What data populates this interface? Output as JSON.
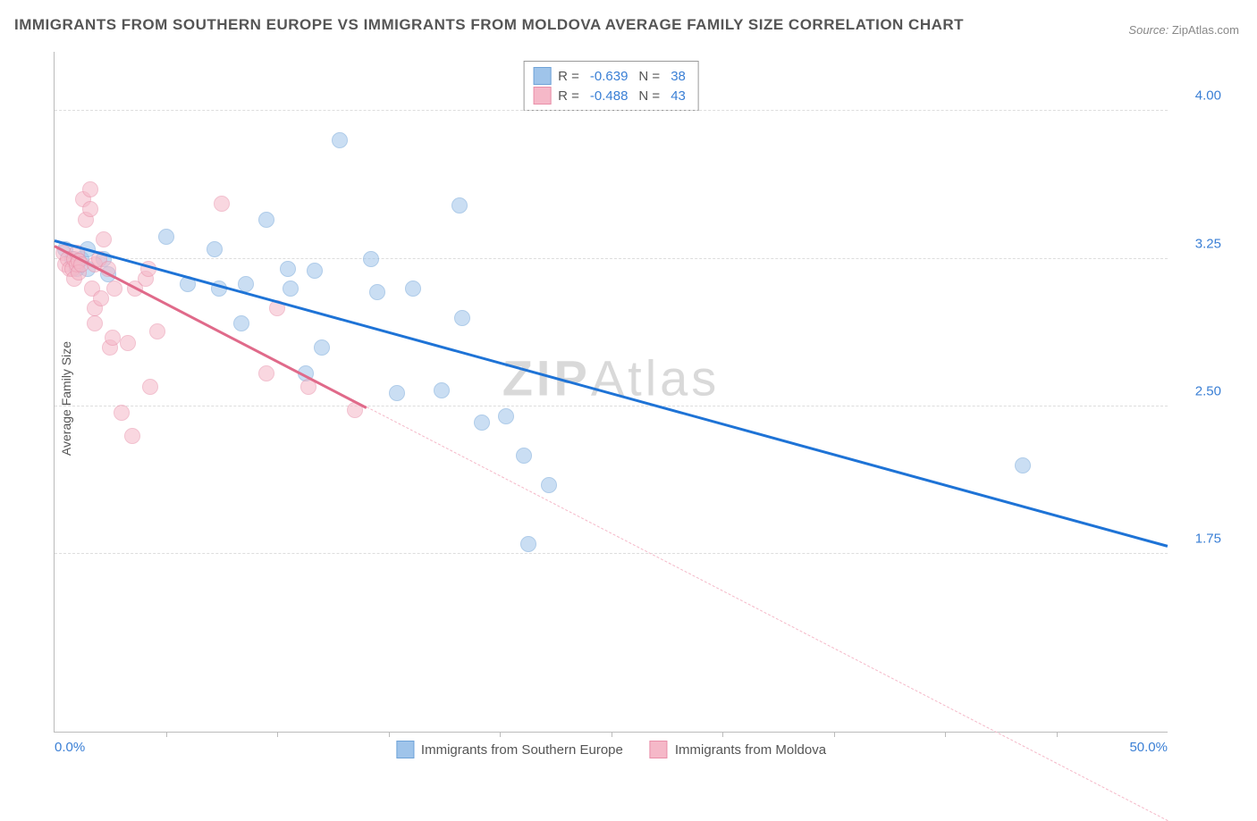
{
  "title": "IMMIGRANTS FROM SOUTHERN EUROPE VS IMMIGRANTS FROM MOLDOVA AVERAGE FAMILY SIZE CORRELATION CHART",
  "source_label": "Source:",
  "source_value": "ZipAtlas.com",
  "watermark_a": "ZIP",
  "watermark_b": "Atlas",
  "y_axis_label": "Average Family Size",
  "chart": {
    "type": "scatter",
    "xlim": [
      0,
      50
    ],
    "ylim": [
      0.85,
      4.3
    ],
    "x_min_label": "0.0%",
    "x_max_label": "50.0%",
    "x_tick_positions": [
      5,
      10,
      15,
      20,
      25,
      30,
      35,
      40,
      45
    ],
    "y_ticks": [
      {
        "v": 1.75,
        "label": "1.75"
      },
      {
        "v": 2.5,
        "label": "2.50"
      },
      {
        "v": 3.25,
        "label": "3.25"
      },
      {
        "v": 4.0,
        "label": "4.00"
      }
    ],
    "grid_color": "#dddddd",
    "background_color": "#ffffff",
    "marker_radius": 9,
    "marker_stroke_width": 1.5,
    "series": [
      {
        "id": "southern-europe",
        "label": "Immigrants from Southern Europe",
        "fill": "#9fc4ea",
        "stroke": "#6fa3d8",
        "fill_opacity": 0.55,
        "R": "-0.639",
        "N": "38",
        "regression": {
          "x1": 0,
          "y1": 3.35,
          "x2": 50,
          "y2": 1.8,
          "stroke": "#1e73d6",
          "width": 3,
          "dash": "none"
        },
        "points": [
          [
            0.5,
            3.3
          ],
          [
            0.8,
            3.25
          ],
          [
            1.0,
            3.2
          ],
          [
            1.2,
            3.25
          ],
          [
            1.5,
            3.3
          ],
          [
            1.5,
            3.2
          ],
          [
            2.2,
            3.25
          ],
          [
            2.4,
            3.17
          ],
          [
            5.0,
            3.36
          ],
          [
            6.0,
            3.12
          ],
          [
            7.2,
            3.3
          ],
          [
            7.4,
            3.1
          ],
          [
            8.4,
            2.92
          ],
          [
            8.6,
            3.12
          ],
          [
            9.5,
            3.45
          ],
          [
            10.5,
            3.2
          ],
          [
            10.6,
            3.1
          ],
          [
            11.3,
            2.67
          ],
          [
            11.7,
            3.19
          ],
          [
            12.0,
            2.8
          ],
          [
            12.8,
            3.85
          ],
          [
            14.2,
            3.25
          ],
          [
            14.5,
            3.08
          ],
          [
            15.4,
            2.57
          ],
          [
            16.1,
            3.1
          ],
          [
            17.4,
            2.58
          ],
          [
            18.2,
            3.52
          ],
          [
            18.3,
            2.95
          ],
          [
            19.2,
            2.42
          ],
          [
            20.3,
            2.45
          ],
          [
            21.1,
            2.25
          ],
          [
            21.3,
            1.8
          ],
          [
            22.2,
            2.1
          ],
          [
            43.5,
            2.2
          ]
        ]
      },
      {
        "id": "moldova",
        "label": "Immigrants from Moldova",
        "fill": "#f5b8c8",
        "stroke": "#e98fa9",
        "fill_opacity": 0.55,
        "R": "-0.488",
        "N": "43",
        "regression": {
          "x1": 0,
          "y1": 3.32,
          "x2": 14,
          "y2": 2.5,
          "stroke": "#e06a8a",
          "width": 3,
          "dash": "none"
        },
        "regression_ext": {
          "x1": 14,
          "y1": 2.5,
          "x2": 50,
          "y2": 0.4,
          "stroke": "#f5b8c8",
          "width": 1,
          "dash": "6,5"
        },
        "points": [
          [
            0.4,
            3.28
          ],
          [
            0.5,
            3.22
          ],
          [
            0.6,
            3.25
          ],
          [
            0.7,
            3.2
          ],
          [
            0.8,
            3.2
          ],
          [
            0.9,
            3.15
          ],
          [
            0.9,
            3.25
          ],
          [
            1.0,
            3.22
          ],
          [
            1.0,
            3.28
          ],
          [
            1.1,
            3.24
          ],
          [
            1.1,
            3.18
          ],
          [
            1.2,
            3.22
          ],
          [
            1.3,
            3.55
          ],
          [
            1.4,
            3.45
          ],
          [
            1.6,
            3.6
          ],
          [
            1.6,
            3.5
          ],
          [
            1.7,
            3.1
          ],
          [
            1.8,
            3.0
          ],
          [
            1.8,
            2.92
          ],
          [
            1.8,
            3.22
          ],
          [
            2.0,
            3.25
          ],
          [
            2.1,
            3.05
          ],
          [
            2.2,
            3.35
          ],
          [
            2.4,
            3.2
          ],
          [
            2.5,
            2.8
          ],
          [
            2.6,
            2.85
          ],
          [
            2.7,
            3.1
          ],
          [
            3.0,
            2.47
          ],
          [
            3.3,
            2.82
          ],
          [
            3.5,
            2.35
          ],
          [
            3.6,
            3.1
          ],
          [
            4.1,
            3.15
          ],
          [
            4.2,
            3.2
          ],
          [
            4.3,
            2.6
          ],
          [
            4.6,
            2.88
          ],
          [
            7.5,
            3.53
          ],
          [
            9.5,
            2.67
          ],
          [
            10.0,
            3.0
          ],
          [
            11.4,
            2.6
          ],
          [
            13.5,
            2.48
          ]
        ]
      }
    ],
    "legend_top": {
      "R_label": "R =",
      "N_label": "N ="
    }
  }
}
